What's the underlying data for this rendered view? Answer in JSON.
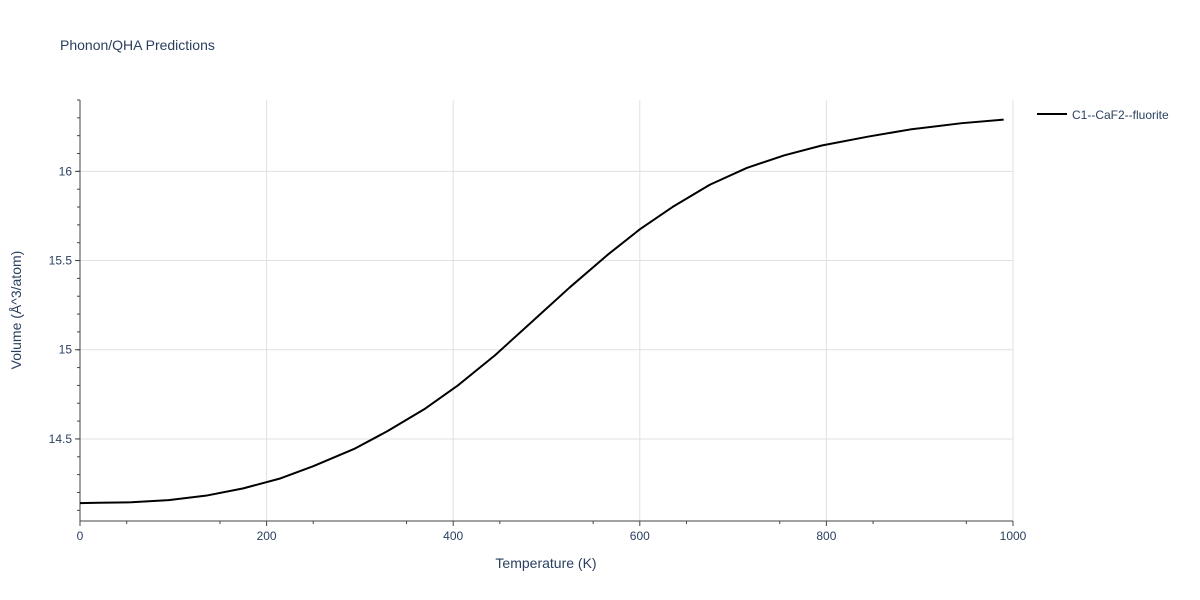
{
  "chart_data": {
    "type": "line",
    "title": "Phonon/QHA Predictions",
    "xlabel": "Temperature (K)",
    "ylabel": "Volume (Å^3/atom)",
    "xlim": [
      0,
      1000
    ],
    "ylim": [
      14.04,
      16.4
    ],
    "x_ticks": [
      0,
      200,
      400,
      600,
      800,
      1000
    ],
    "x_tick_labels": [
      "0",
      "200",
      "400",
      "600",
      "800",
      "1000"
    ],
    "y_ticks": [
      14.5,
      15,
      15.5,
      16
    ],
    "y_tick_labels": [
      "14.5",
      "15",
      "15.5",
      "16"
    ],
    "grid": true,
    "legend_position": "top-right",
    "series": [
      {
        "name": "C1--CaF2--fluorite",
        "color": "#000000",
        "x": [
          0,
          20,
          55,
          95,
          135,
          175,
          215,
          250,
          295,
          330,
          370,
          405,
          445,
          485,
          525,
          565,
          600,
          635,
          675,
          715,
          755,
          795,
          845,
          890,
          945,
          990
        ],
        "y": [
          14.14,
          14.142,
          14.145,
          14.157,
          14.182,
          14.223,
          14.279,
          14.347,
          14.447,
          14.545,
          14.67,
          14.8,
          14.97,
          15.16,
          15.35,
          15.53,
          15.675,
          15.8,
          15.925,
          16.02,
          16.09,
          16.145,
          16.195,
          16.235,
          16.27,
          16.29
        ]
      }
    ]
  }
}
